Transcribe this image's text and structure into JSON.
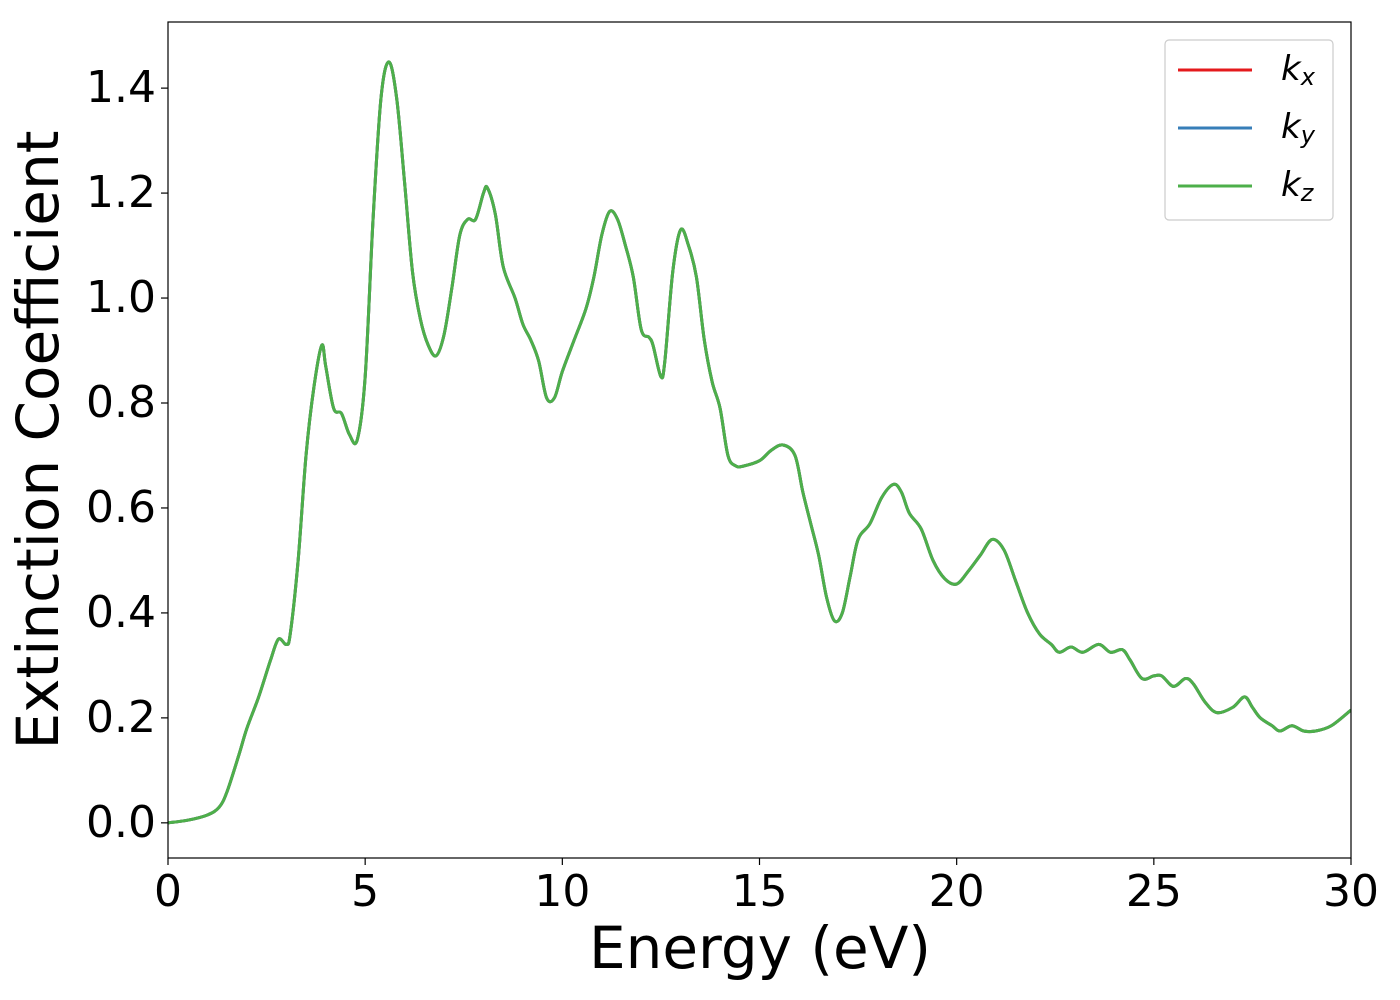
{
  "chart_data": {
    "type": "line",
    "x_label": "Energy (eV)",
    "y_label": "Extinction Coefficient",
    "xlim": [
      0,
      30
    ],
    "ylim": [
      -0.067,
      1.526
    ],
    "xticks": [
      0,
      5,
      10,
      15,
      20,
      25,
      30
    ],
    "yticks": [
      {
        "value": 0,
        "label": "0.0"
      },
      0.2,
      0.4,
      0.6,
      0.8,
      {
        "value": 1,
        "label": "1.0"
      },
      1.2,
      1.4
    ],
    "legend": "upper right",
    "grid": false,
    "x": [
      0,
      0.5,
      1.0,
      1.3,
      1.5,
      1.8,
      2.0,
      2.3,
      2.6,
      2.8,
      3.0,
      3.1,
      3.3,
      3.5,
      3.7,
      3.9,
      4.0,
      4.2,
      4.4,
      4.6,
      4.8,
      5.0,
      5.2,
      5.4,
      5.6,
      5.8,
      6.0,
      6.2,
      6.4,
      6.6,
      6.8,
      7.0,
      7.2,
      7.4,
      7.6,
      7.8,
      8.0,
      8.1,
      8.3,
      8.5,
      8.8,
      9.0,
      9.2,
      9.4,
      9.6,
      9.8,
      10.0,
      10.3,
      10.6,
      10.8,
      11.0,
      11.2,
      11.4,
      11.6,
      11.8,
      12.0,
      12.2,
      12.3,
      12.5,
      12.6,
      12.8,
      13.0,
      13.2,
      13.4,
      13.6,
      13.8,
      14.0,
      14.2,
      14.4,
      14.6,
      15.0,
      15.3,
      15.6,
      15.9,
      16.1,
      16.3,
      16.5,
      16.7,
      16.9,
      17.1,
      17.3,
      17.5,
      17.8,
      18.1,
      18.4,
      18.6,
      18.8,
      19.1,
      19.4,
      19.7,
      20.0,
      20.3,
      20.6,
      20.9,
      21.2,
      21.5,
      21.8,
      22.1,
      22.4,
      22.6,
      22.9,
      23.2,
      23.6,
      23.9,
      24.2,
      24.4,
      24.7,
      25.0,
      25.2,
      25.5,
      25.8,
      26.0,
      26.3,
      26.6,
      27.0,
      27.3,
      27.5,
      27.7,
      28.0,
      28.2,
      28.5,
      28.8,
      29.1,
      29.5,
      30.0
    ],
    "series": [
      {
        "name": "kx",
        "color": "#e41a1c",
        "values": [
          0,
          0.005,
          0.015,
          0.03,
          0.06,
          0.13,
          0.18,
          0.24,
          0.31,
          0.35,
          0.34,
          0.36,
          0.5,
          0.7,
          0.83,
          0.91,
          0.87,
          0.79,
          0.78,
          0.74,
          0.73,
          0.85,
          1.15,
          1.38,
          1.45,
          1.38,
          1.22,
          1.05,
          0.96,
          0.91,
          0.89,
          0.93,
          1.02,
          1.12,
          1.15,
          1.15,
          1.2,
          1.21,
          1.16,
          1.06,
          1.0,
          0.95,
          0.92,
          0.88,
          0.81,
          0.81,
          0.86,
          0.92,
          0.98,
          1.04,
          1.12,
          1.165,
          1.15,
          1.1,
          1.04,
          0.94,
          0.925,
          0.91,
          0.85,
          0.88,
          1.05,
          1.13,
          1.1,
          1.04,
          0.92,
          0.84,
          0.79,
          0.7,
          0.68,
          0.68,
          0.69,
          0.71,
          0.72,
          0.7,
          0.63,
          0.57,
          0.51,
          0.43,
          0.385,
          0.4,
          0.47,
          0.54,
          0.57,
          0.62,
          0.645,
          0.63,
          0.59,
          0.56,
          0.5,
          0.465,
          0.455,
          0.48,
          0.51,
          0.54,
          0.52,
          0.46,
          0.4,
          0.36,
          0.34,
          0.325,
          0.335,
          0.325,
          0.34,
          0.325,
          0.33,
          0.31,
          0.275,
          0.28,
          0.28,
          0.26,
          0.275,
          0.265,
          0.23,
          0.21,
          0.22,
          0.24,
          0.22,
          0.2,
          0.185,
          0.175,
          0.185,
          0.175,
          0.175,
          0.185,
          0.215
        ]
      },
      {
        "name": "ky",
        "color": "#377eb8",
        "values": [
          0,
          0.005,
          0.015,
          0.03,
          0.06,
          0.13,
          0.18,
          0.24,
          0.31,
          0.35,
          0.34,
          0.36,
          0.5,
          0.7,
          0.83,
          0.91,
          0.87,
          0.79,
          0.78,
          0.74,
          0.73,
          0.85,
          1.15,
          1.38,
          1.45,
          1.38,
          1.22,
          1.05,
          0.96,
          0.91,
          0.89,
          0.93,
          1.02,
          1.12,
          1.15,
          1.15,
          1.2,
          1.21,
          1.16,
          1.06,
          1.0,
          0.95,
          0.92,
          0.88,
          0.81,
          0.81,
          0.86,
          0.92,
          0.98,
          1.04,
          1.12,
          1.165,
          1.15,
          1.1,
          1.04,
          0.94,
          0.925,
          0.91,
          0.85,
          0.88,
          1.05,
          1.13,
          1.1,
          1.04,
          0.92,
          0.84,
          0.79,
          0.7,
          0.68,
          0.68,
          0.69,
          0.71,
          0.72,
          0.7,
          0.63,
          0.57,
          0.51,
          0.43,
          0.385,
          0.4,
          0.47,
          0.54,
          0.57,
          0.62,
          0.645,
          0.63,
          0.59,
          0.56,
          0.5,
          0.465,
          0.455,
          0.48,
          0.51,
          0.54,
          0.52,
          0.46,
          0.4,
          0.36,
          0.34,
          0.325,
          0.335,
          0.325,
          0.34,
          0.325,
          0.33,
          0.31,
          0.275,
          0.28,
          0.28,
          0.26,
          0.275,
          0.265,
          0.23,
          0.21,
          0.22,
          0.24,
          0.22,
          0.2,
          0.185,
          0.175,
          0.185,
          0.175,
          0.175,
          0.185,
          0.215
        ]
      },
      {
        "name": "kz",
        "color": "#4daf4a",
        "values": [
          0,
          0.005,
          0.015,
          0.03,
          0.06,
          0.13,
          0.18,
          0.24,
          0.31,
          0.35,
          0.34,
          0.36,
          0.5,
          0.7,
          0.83,
          0.91,
          0.87,
          0.79,
          0.78,
          0.74,
          0.73,
          0.85,
          1.15,
          1.38,
          1.45,
          1.38,
          1.22,
          1.05,
          0.96,
          0.91,
          0.89,
          0.93,
          1.02,
          1.12,
          1.15,
          1.15,
          1.2,
          1.21,
          1.16,
          1.06,
          1.0,
          0.95,
          0.92,
          0.88,
          0.81,
          0.81,
          0.86,
          0.92,
          0.98,
          1.04,
          1.12,
          1.165,
          1.15,
          1.1,
          1.04,
          0.94,
          0.925,
          0.91,
          0.85,
          0.88,
          1.05,
          1.13,
          1.1,
          1.04,
          0.92,
          0.84,
          0.79,
          0.7,
          0.68,
          0.68,
          0.69,
          0.71,
          0.72,
          0.7,
          0.63,
          0.57,
          0.51,
          0.43,
          0.385,
          0.4,
          0.47,
          0.54,
          0.57,
          0.62,
          0.645,
          0.63,
          0.59,
          0.56,
          0.5,
          0.465,
          0.455,
          0.48,
          0.51,
          0.54,
          0.52,
          0.46,
          0.4,
          0.36,
          0.34,
          0.325,
          0.335,
          0.325,
          0.34,
          0.325,
          0.33,
          0.31,
          0.275,
          0.28,
          0.28,
          0.26,
          0.275,
          0.265,
          0.23,
          0.21,
          0.22,
          0.24,
          0.22,
          0.2,
          0.185,
          0.175,
          0.185,
          0.175,
          0.175,
          0.185,
          0.215
        ]
      }
    ]
  }
}
